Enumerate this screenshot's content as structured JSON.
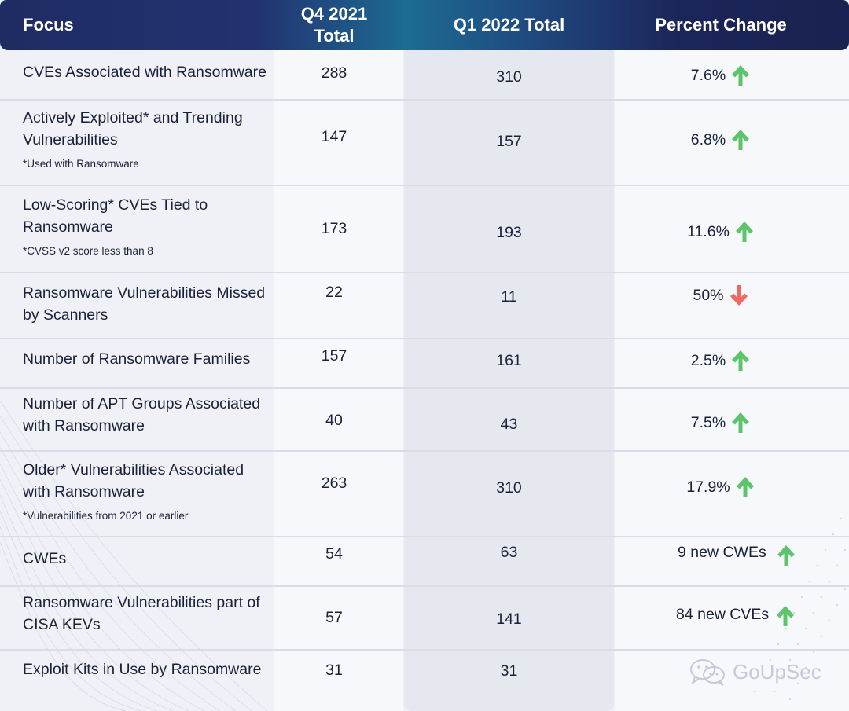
{
  "header": {
    "focus": "Focus",
    "q4_line1": "Q4 2021",
    "q4_line2": "Total",
    "q1": "Q1 2022 Total",
    "pct": "Percent Change"
  },
  "colors": {
    "header_dark": "#1f2c63",
    "header_accent": "#1d6b93",
    "arrow_up": "#5cc46a",
    "arrow_down": "#ef6a63"
  },
  "rows": [
    {
      "focus": "CVEs Associated with Ransomware",
      "note": "",
      "q4": "288",
      "q1": "310",
      "change": "7.6%",
      "direction": "up",
      "direction_icon": "arrow-up-icon"
    },
    {
      "focus": "Actively Exploited* and Trending Vulnerabilities",
      "note": "*Used with Ransomware",
      "q4": "147",
      "q1": "157",
      "change": "6.8%",
      "direction": "up",
      "direction_icon": "arrow-up-icon"
    },
    {
      "focus": "Low-Scoring* CVEs Tied to Ransomware",
      "note": "*CVSS v2 score less than 8",
      "q4": "173",
      "q1": "193",
      "change": "11.6%",
      "direction": "up",
      "direction_icon": "arrow-up-icon"
    },
    {
      "focus": "Ransomware Vulnerabilities Missed by Scanners",
      "note": "",
      "q4": "22",
      "q1": "11",
      "change": "50%",
      "direction": "down",
      "direction_icon": "arrow-down-icon"
    },
    {
      "focus": "Number of Ransomware Families",
      "note": "",
      "q4": "157",
      "q1": "161",
      "change": "2.5%",
      "direction": "up",
      "direction_icon": "arrow-up-icon"
    },
    {
      "focus": "Number of APT Groups Associated with Ransomware",
      "note": "",
      "q4": "40",
      "q1": "43",
      "change": "7.5%",
      "direction": "up",
      "direction_icon": "arrow-up-icon"
    },
    {
      "focus": "Older* Vulnerabilities Associated with Ransomware",
      "note": "*Vulnerabilities from 2021 or earlier",
      "q4": "263",
      "q1": "310",
      "change": "17.9%",
      "direction": "up",
      "direction_icon": "arrow-up-icon"
    },
    {
      "focus": "CWEs",
      "note": "",
      "q4": "54",
      "q1": "63",
      "change": "9 new CWEs",
      "direction": "up",
      "direction_icon": "arrow-up-icon"
    },
    {
      "focus": "Ransomware Vulnerabilities part of CISA KEVs",
      "note": "",
      "q4": "57",
      "q1": "141",
      "change": "84 new CVEs",
      "direction": "up",
      "direction_icon": "arrow-up-icon"
    },
    {
      "focus": "Exploit Kits in Use by Ransomware",
      "note": "",
      "q4": "31",
      "q1": "31",
      "change": "",
      "direction": "none",
      "direction_icon": ""
    }
  ],
  "watermark": {
    "text": "GoUpSec",
    "icon": "wechat-icon"
  }
}
